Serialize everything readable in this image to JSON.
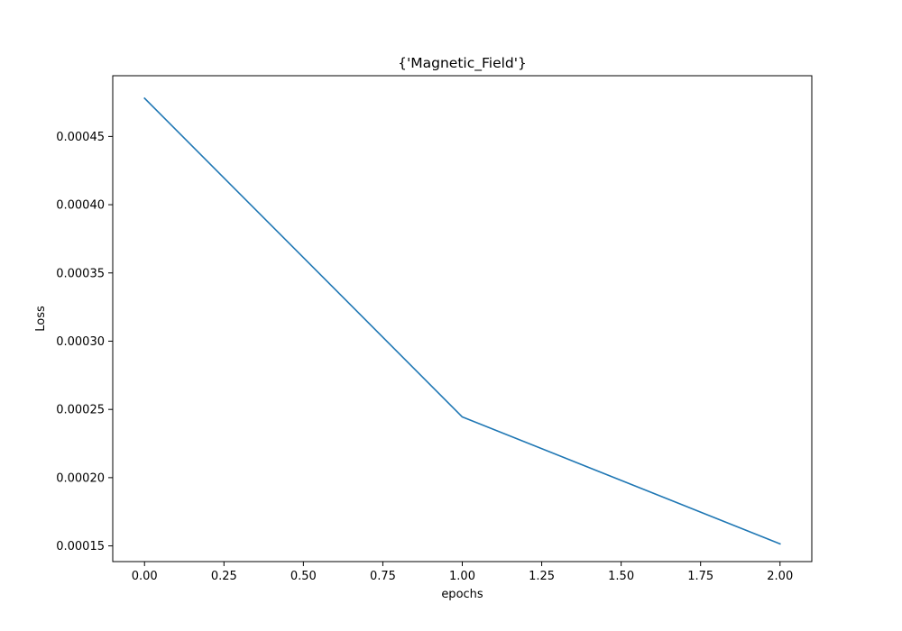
{
  "chart_data": {
    "type": "line",
    "title": "{'Magnetic_Field'}",
    "xlabel": "epochs",
    "ylabel": "Loss",
    "xlim": [
      -0.1,
      2.1
    ],
    "ylim": [
      0.0001385,
      0.0004945
    ],
    "x_ticks": [
      0.0,
      0.25,
      0.5,
      0.75,
      1.0,
      1.25,
      1.5,
      1.75,
      2.0
    ],
    "x_tick_labels": [
      "0.00",
      "0.25",
      "0.50",
      "0.75",
      "1.00",
      "1.25",
      "1.50",
      "1.75",
      "2.00"
    ],
    "y_ticks": [
      0.00015,
      0.0002,
      0.00025,
      0.0003,
      0.00035,
      0.0004,
      0.00045
    ],
    "y_tick_labels": [
      "0.00015",
      "0.00020",
      "0.00025",
      "0.00030",
      "0.00035",
      "0.00040",
      "0.00045"
    ],
    "grid": false,
    "series": [
      {
        "color": "#1f77b4",
        "x": [
          0,
          1,
          2
        ],
        "y": [
          0.000478,
          0.0002445,
          0.0001515
        ]
      }
    ]
  }
}
